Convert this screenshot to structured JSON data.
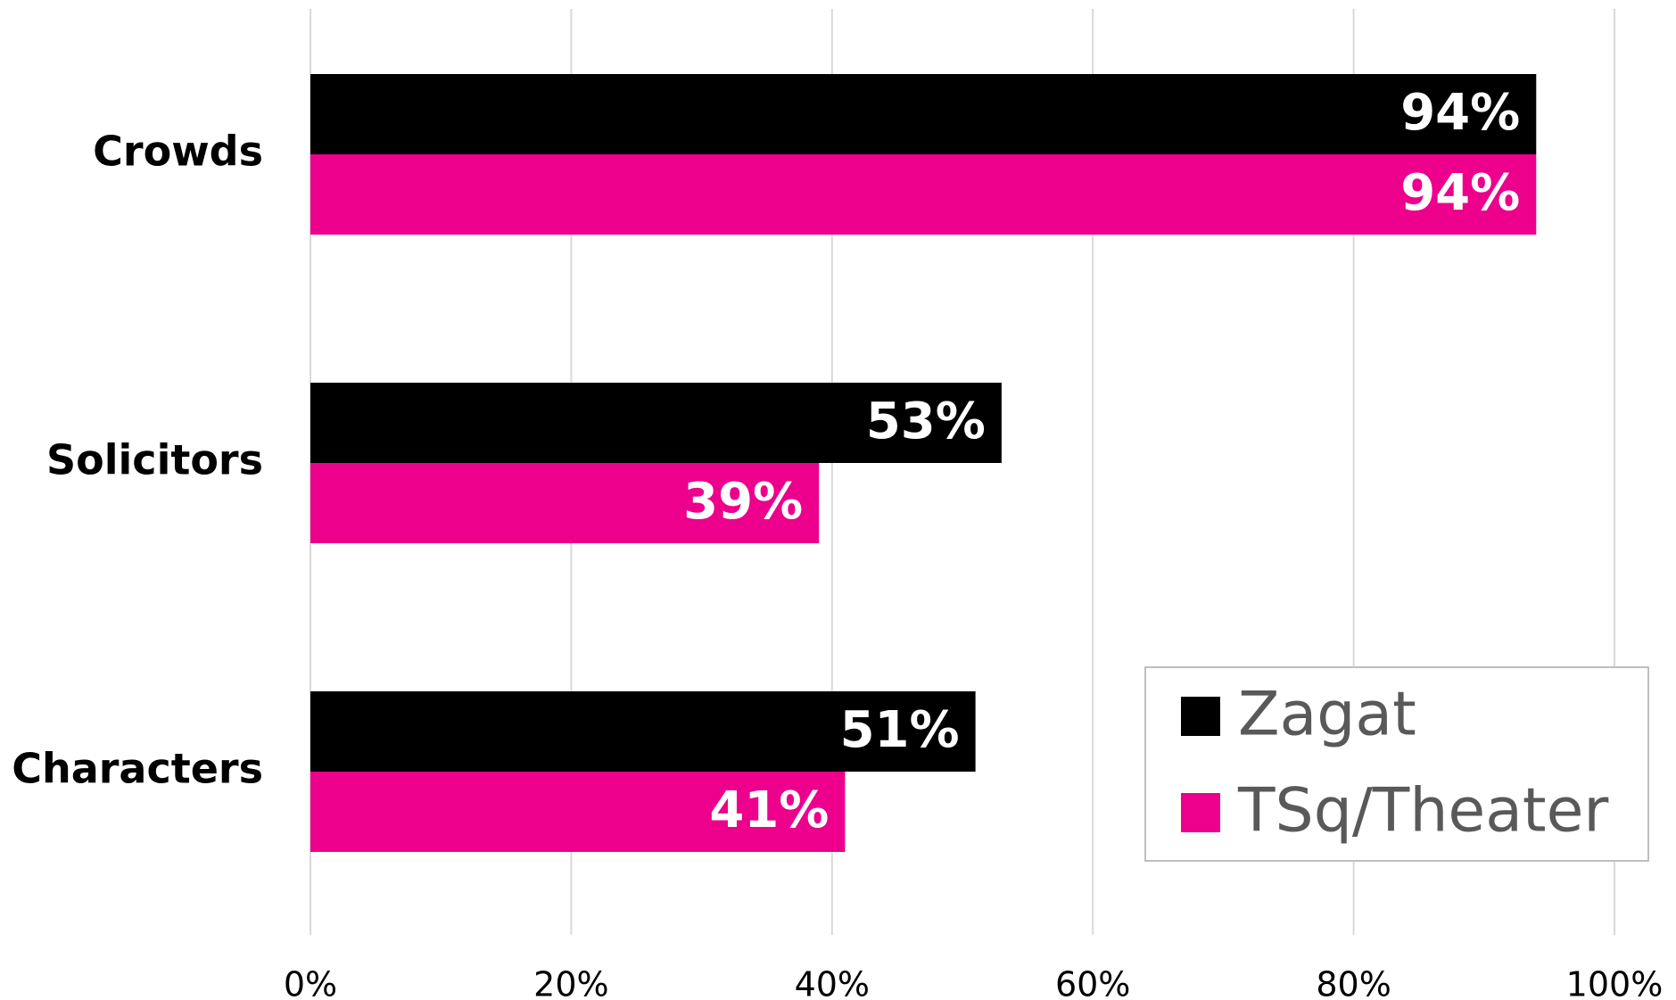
{
  "chart_data": {
    "type": "bar",
    "orientation": "horizontal",
    "categories": [
      "Crowds",
      "Solicitors",
      "Characters"
    ],
    "series": [
      {
        "name": "Zagat",
        "color": "#000000",
        "values": [
          94,
          53,
          51
        ],
        "value_labels": [
          "94%",
          "53%",
          "51%"
        ]
      },
      {
        "name": "TSq/Theater",
        "color": "#ec008c",
        "values": [
          94,
          39,
          41
        ],
        "value_labels": [
          "94%",
          "39%",
          "41%"
        ]
      }
    ],
    "xlim": [
      0,
      100
    ],
    "xticks": [
      {
        "value": 0,
        "label": "0%"
      },
      {
        "value": 20,
        "label": "20%"
      },
      {
        "value": 40,
        "label": "40%"
      },
      {
        "value": 60,
        "label": "60%"
      },
      {
        "value": 80,
        "label": "80%"
      },
      {
        "value": 100,
        "label": "100%"
      }
    ],
    "grid": true,
    "legend": "lower right"
  }
}
